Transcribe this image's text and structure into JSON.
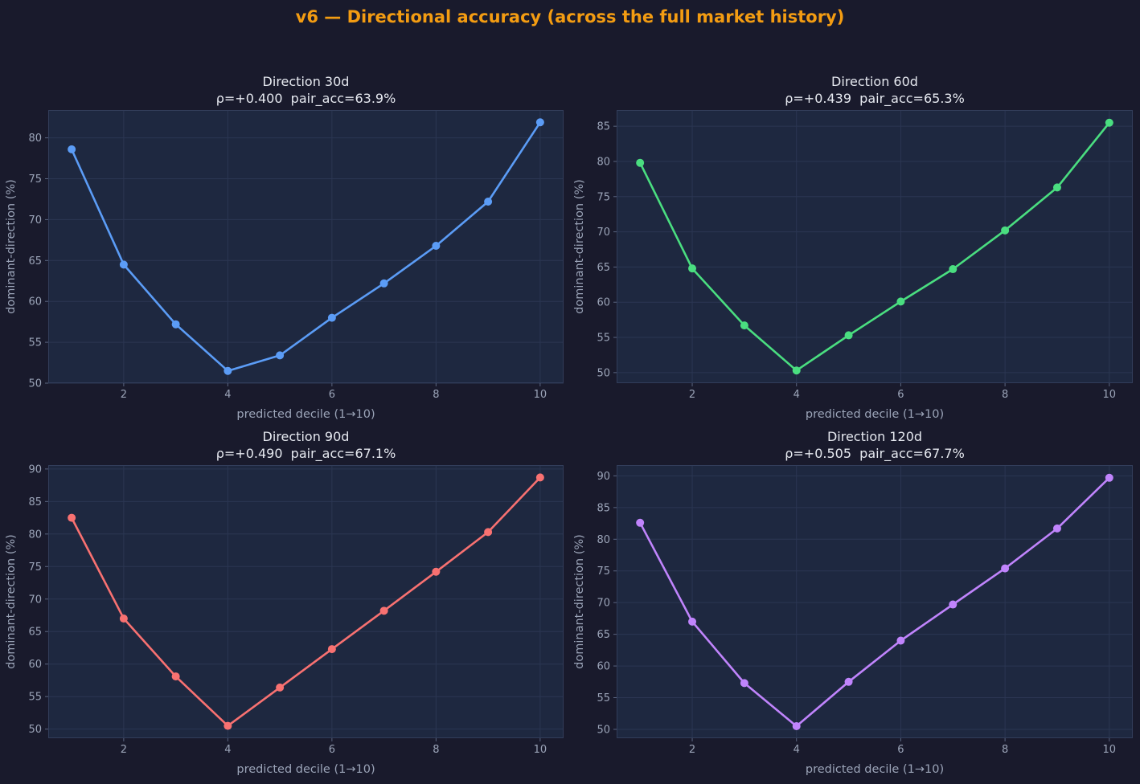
{
  "figure": {
    "title": "v6 — Directional accuracy (across the full market history)"
  },
  "chart_data": [
    {
      "type": "line",
      "title": "Direction 30d",
      "subtitle": "ρ=+0.400  pair_acc=63.9%",
      "xlabel": "predicted decile (1→10)",
      "ylabel": "dominant-direction (%)",
      "x": [
        1,
        2,
        3,
        4,
        5,
        6,
        7,
        8,
        9,
        10
      ],
      "series": [
        {
          "values": [
            78.6,
            64.5,
            57.2,
            51.5,
            53.4,
            58.0,
            62.2,
            66.8,
            72.2,
            81.9
          ]
        }
      ],
      "xlim": [
        0.55,
        10.45
      ],
      "ylim": [
        50.0,
        83.4
      ],
      "xticks": [
        2,
        4,
        6,
        8,
        10
      ],
      "yticks": [
        50,
        55,
        60,
        65,
        70,
        75,
        80
      ],
      "grid": true,
      "color": "#5b9cf6"
    },
    {
      "type": "line",
      "title": "Direction 60d",
      "subtitle": "ρ=+0.439  pair_acc=65.3%",
      "xlabel": "predicted decile (1→10)",
      "ylabel": "dominant-direction (%)",
      "x": [
        1,
        2,
        3,
        4,
        5,
        6,
        7,
        8,
        9,
        10
      ],
      "series": [
        {
          "values": [
            79.8,
            64.8,
            56.7,
            50.3,
            55.3,
            60.1,
            64.7,
            70.2,
            76.3,
            85.5
          ]
        }
      ],
      "xlim": [
        0.55,
        10.45
      ],
      "ylim": [
        48.5,
        87.3
      ],
      "xticks": [
        2,
        4,
        6,
        8,
        10
      ],
      "yticks": [
        50,
        55,
        60,
        65,
        70,
        75,
        80,
        85
      ],
      "grid": true,
      "color": "#4ade80"
    },
    {
      "type": "line",
      "title": "Direction 90d",
      "subtitle": "ρ=+0.490  pair_acc=67.1%",
      "xlabel": "predicted decile (1→10)",
      "ylabel": "dominant-direction (%)",
      "x": [
        1,
        2,
        3,
        4,
        5,
        6,
        7,
        8,
        9,
        10
      ],
      "series": [
        {
          "values": [
            82.5,
            67.0,
            58.1,
            50.5,
            56.4,
            62.3,
            68.2,
            74.2,
            80.3,
            88.7
          ]
        }
      ],
      "xlim": [
        0.55,
        10.45
      ],
      "ylim": [
        48.6,
        90.6
      ],
      "xticks": [
        2,
        4,
        6,
        8,
        10
      ],
      "yticks": [
        50,
        55,
        60,
        65,
        70,
        75,
        80,
        85,
        90
      ],
      "grid": true,
      "color": "#f87171"
    },
    {
      "type": "line",
      "title": "Direction 120d",
      "subtitle": "ρ=+0.505  pair_acc=67.7%",
      "xlabel": "predicted decile (1→10)",
      "ylabel": "dominant-direction (%)",
      "x": [
        1,
        2,
        3,
        4,
        5,
        6,
        7,
        8,
        9,
        10
      ],
      "series": [
        {
          "values": [
            82.6,
            67.0,
            57.3,
            50.5,
            57.5,
            64.0,
            69.7,
            75.4,
            81.7,
            89.7
          ]
        }
      ],
      "xlim": [
        0.55,
        10.45
      ],
      "ylim": [
        48.6,
        91.7
      ],
      "xticks": [
        2,
        4,
        6,
        8,
        10
      ],
      "yticks": [
        50,
        55,
        60,
        65,
        70,
        75,
        80,
        85,
        90
      ],
      "grid": true,
      "color": "#c084fc"
    }
  ]
}
